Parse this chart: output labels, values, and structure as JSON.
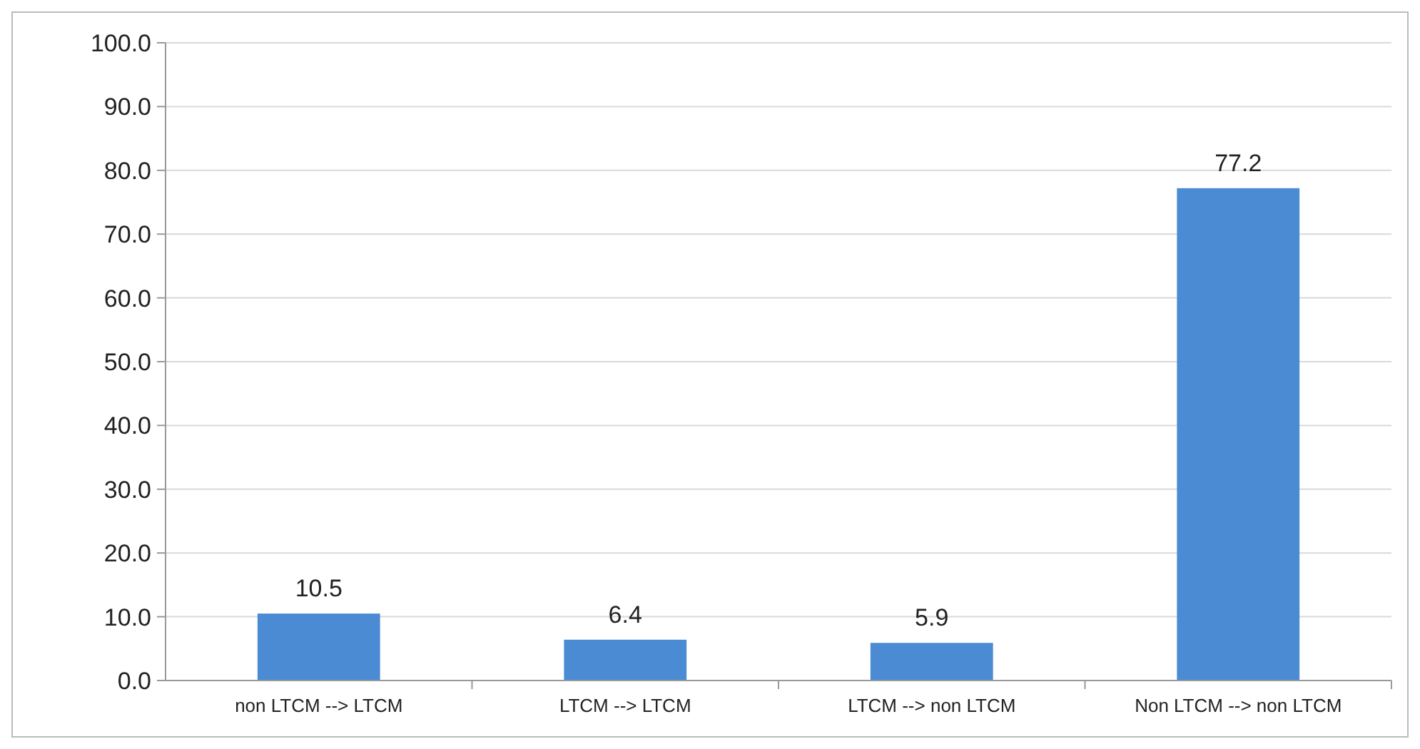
{
  "chart_data": {
    "type": "bar",
    "categories": [
      "non LTCM --> LTCM",
      "LTCM --> LTCM",
      "LTCM --> non LTCM",
      "Non LTCM --> non LTCM"
    ],
    "values": [
      10.5,
      6.4,
      5.9,
      77.2
    ],
    "color": "#4a8bd4",
    "ylim": [
      0,
      100
    ],
    "yticks": [
      {
        "value": 0,
        "label": "0.0"
      },
      {
        "value": 10,
        "label": "10.0"
      },
      {
        "value": 20,
        "label": "20.0"
      },
      {
        "value": 30,
        "label": "30.0"
      },
      {
        "value": 40,
        "label": "40.0"
      },
      {
        "value": 50,
        "label": "50.0"
      },
      {
        "value": 60,
        "label": "60.0"
      },
      {
        "value": 70,
        "label": "70.0"
      },
      {
        "value": 80,
        "label": "80.0"
      },
      {
        "value": 90,
        "label": "90.0"
      },
      {
        "value": 100,
        "label": "100.0"
      }
    ],
    "grid": "y",
    "data_labels": true
  }
}
